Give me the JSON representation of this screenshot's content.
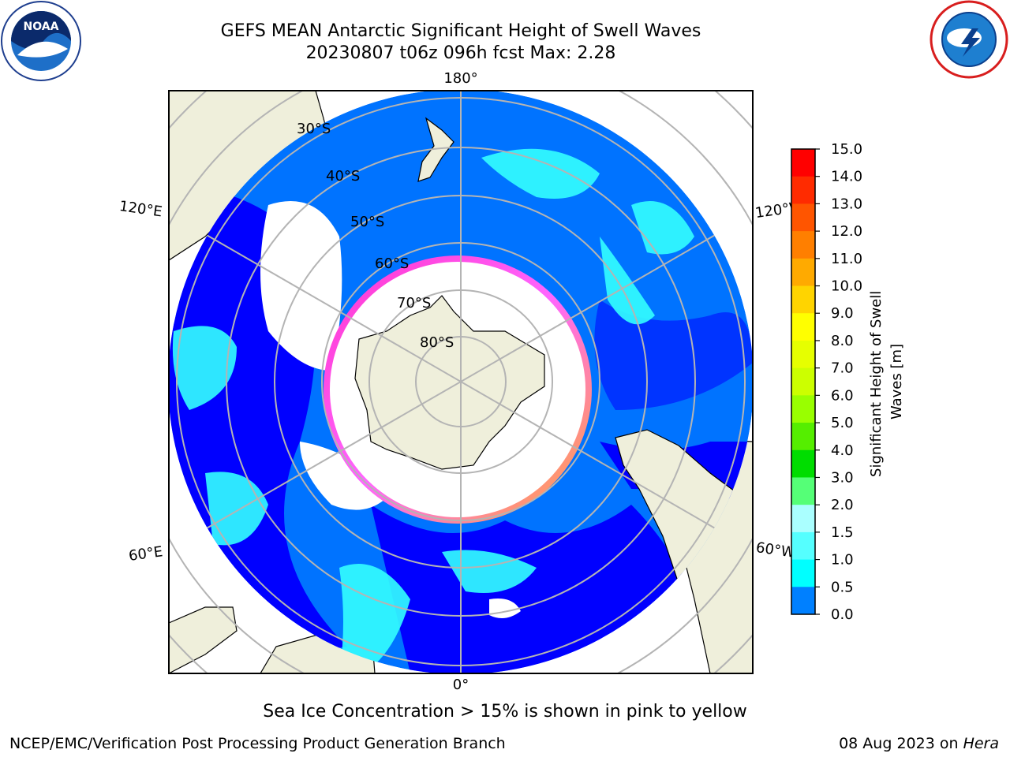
{
  "title": {
    "line1": "GEFS MEAN Antarctic Significant Height of Swell Waves",
    "line2": "20230807 t06z 096h fcst   Max: 2.28"
  },
  "logos": {
    "left": "NOAA",
    "right": "NATIONAL WEATHER SERVICE"
  },
  "map": {
    "projection": "south-polar-stereographic",
    "lat_labels": [
      "30°S",
      "40°S",
      "50°S",
      "60°S",
      "70°S",
      "80°S"
    ],
    "lon_labels": {
      "top": "180°",
      "bottom": "0°",
      "left_upper": "120°E",
      "left_lower": "60°E",
      "right_upper": "120°W",
      "right_lower": "60°W"
    }
  },
  "colorbar": {
    "label": "Significant Height of Swell Waves [m]",
    "ticks": [
      "15.0",
      "14.0",
      "13.0",
      "12.0",
      "11.0",
      "10.0",
      "9.0",
      "8.0",
      "7.0",
      "6.0",
      "5.0",
      "4.0",
      "3.0",
      "2.0",
      "1.5",
      "1.0",
      "0.5",
      "0.0"
    ],
    "colors": [
      "#ff0000",
      "#ff2b00",
      "#ff5500",
      "#ff7f00",
      "#ffaa00",
      "#ffd400",
      "#ffff00",
      "#e6ff00",
      "#ccff00",
      "#99ff00",
      "#55ee00",
      "#00dd00",
      "#55ff77",
      "#aaffff",
      "#55ffff",
      "#00ffff",
      "#0080ff",
      "#0000ff"
    ]
  },
  "footer": {
    "note": "Sea Ice Concentration > 15% is shown in pink to yellow",
    "credit": "NCEP/EMC/Verification Post Processing Product Generation Branch",
    "date": "08 Aug 2023 on ",
    "host": "Hera"
  }
}
